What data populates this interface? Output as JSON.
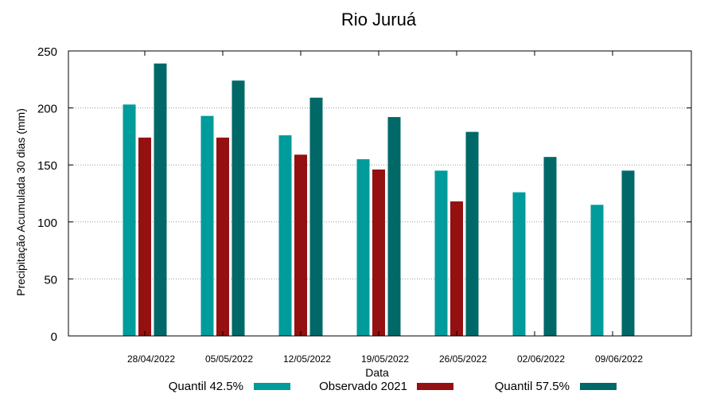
{
  "chart_data": {
    "type": "bar",
    "title": "Rio Juruá",
    "xlabel": "Data",
    "ylabel": "Precipitação Acumulada 30 dias (mm)",
    "ylim": [
      0,
      250
    ],
    "yticks": [
      0,
      50,
      100,
      150,
      200,
      250
    ],
    "grid": "horizontal dotted",
    "legend_position": "bottom",
    "categories": [
      "28/04/2022",
      "05/05/2022",
      "12/05/2022",
      "19/05/2022",
      "26/05/2022",
      "02/06/2022",
      "09/06/2022"
    ],
    "series": [
      {
        "name": "Quantil 42.5%",
        "color": "#009b9b",
        "values": [
          203,
          193,
          176,
          155,
          145,
          126,
          115
        ]
      },
      {
        "name": "Observado 2021",
        "color": "#951010",
        "values": [
          174,
          174,
          159,
          146,
          118,
          null,
          null
        ]
      },
      {
        "name": "Quantil 57.5%",
        "color": "#006967",
        "values": [
          239,
          224,
          209,
          192,
          179,
          157,
          145
        ]
      }
    ]
  }
}
